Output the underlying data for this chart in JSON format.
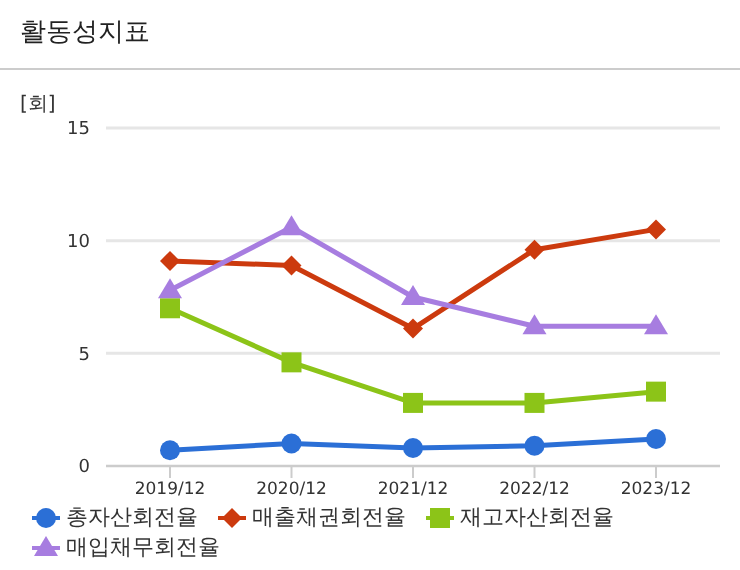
{
  "chart_data": {
    "type": "line",
    "title": "활동성지표",
    "ylabel": "[회]",
    "categories": [
      "2019/12",
      "2020/12",
      "2021/12",
      "2022/12",
      "2023/12"
    ],
    "series": [
      {
        "name": "총자산회전율",
        "color": "#2b6fd6",
        "marker": "circle",
        "values": [
          0.7,
          1.0,
          0.8,
          0.9,
          1.2
        ]
      },
      {
        "name": "매출채권회전율",
        "color": "#cc3a0e",
        "marker": "diamond",
        "values": [
          9.1,
          8.9,
          6.1,
          9.6,
          10.5
        ]
      },
      {
        "name": "재고자산회전율",
        "color": "#8cc418",
        "marker": "square",
        "values": [
          7.0,
          4.6,
          2.8,
          2.8,
          3.3
        ]
      },
      {
        "name": "매입채무회전율",
        "color": "#a77de0",
        "marker": "triangle",
        "values": [
          7.8,
          10.6,
          7.5,
          6.2,
          6.2
        ]
      }
    ],
    "ylim": [
      0,
      15
    ],
    "yticks": [
      0,
      5,
      10,
      15
    ],
    "grid": "y",
    "legend": "bottom",
    "line_style": "solid"
  }
}
